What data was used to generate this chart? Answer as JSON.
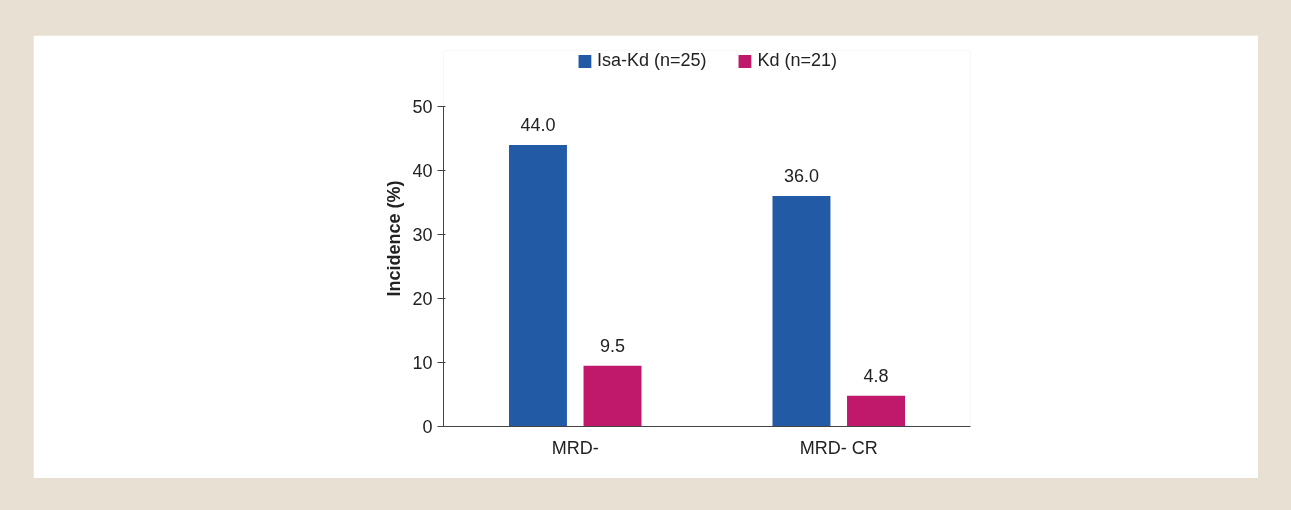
{
  "chart_data": {
    "type": "bar",
    "ylabel": "Incidence (%)",
    "categories": [
      "MRD-",
      "MRD- CR"
    ],
    "series": [
      {
        "name": "Isa-Kd (n=25)",
        "color": "#235aa6",
        "values": [
          44.0,
          36.0
        ],
        "value_labels": [
          "44.0",
          "36.0"
        ]
      },
      {
        "name": "Kd (n=21)",
        "color": "#c0186a",
        "values": [
          9.5,
          4.8
        ],
        "value_labels": [
          "9.5",
          "4.8"
        ]
      }
    ],
    "ylim": [
      0,
      50
    ],
    "yticks": [
      0,
      10,
      20,
      30,
      40,
      50
    ],
    "grid": false,
    "legend": "top"
  }
}
